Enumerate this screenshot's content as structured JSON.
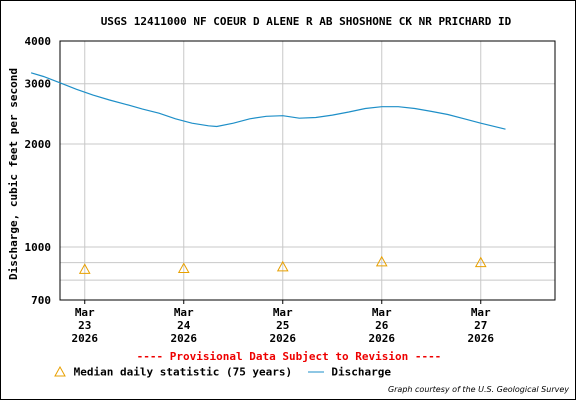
{
  "chart_data": {
    "type": "line",
    "title": "USGS 12411000 NF COEUR D ALENE R AB SHOSHONE CK NR PRICHARD ID",
    "ylabel": "Discharge, cubic feet per second",
    "xlabel": "",
    "y_scale": "log",
    "ylim": [
      700,
      4000
    ],
    "y_ticks": [
      "700",
      "1000",
      "2000",
      "3000",
      "4000"
    ],
    "y_gridlines": [
      800,
      900,
      1000,
      2000,
      3000,
      4000
    ],
    "grid": true,
    "x_ticks": [
      {
        "month": "Mar",
        "day": "23",
        "year": "2026"
      },
      {
        "month": "Mar",
        "day": "24",
        "year": "2026"
      },
      {
        "month": "Mar",
        "day": "25",
        "year": "2026"
      },
      {
        "month": "Mar",
        "day": "26",
        "year": "2026"
      },
      {
        "month": "Mar",
        "day": "27",
        "year": "2026"
      }
    ],
    "series": [
      {
        "name": "Discharge",
        "color": "#1e8fc8",
        "points": [
          [
            "2026-03-22 11:00",
            3230
          ],
          [
            "2026-03-22 14:00",
            3150
          ],
          [
            "2026-03-22 18:00",
            3020
          ],
          [
            "2026-03-22 22:00",
            2890
          ],
          [
            "2026-03-23 02:00",
            2780
          ],
          [
            "2026-03-23 06:00",
            2690
          ],
          [
            "2026-03-23 10:00",
            2610
          ],
          [
            "2026-03-23 14:00",
            2530
          ],
          [
            "2026-03-23 18:00",
            2460
          ],
          [
            "2026-03-23 22:00",
            2370
          ],
          [
            "2026-03-24 02:00",
            2300
          ],
          [
            "2026-03-24 06:00",
            2260
          ],
          [
            "2026-03-24 08:00",
            2250
          ],
          [
            "2026-03-24 12:00",
            2300
          ],
          [
            "2026-03-24 16:00",
            2370
          ],
          [
            "2026-03-24 20:00",
            2410
          ],
          [
            "2026-03-25 00:00",
            2420
          ],
          [
            "2026-03-25 04:00",
            2380
          ],
          [
            "2026-03-25 08:00",
            2390
          ],
          [
            "2026-03-25 12:00",
            2430
          ],
          [
            "2026-03-25 16:00",
            2480
          ],
          [
            "2026-03-25 20:00",
            2540
          ],
          [
            "2026-03-26 00:00",
            2570
          ],
          [
            "2026-03-26 04:00",
            2570
          ],
          [
            "2026-03-26 08:00",
            2540
          ],
          [
            "2026-03-26 12:00",
            2490
          ],
          [
            "2026-03-26 16:00",
            2440
          ],
          [
            "2026-03-26 20:00",
            2370
          ],
          [
            "2026-03-27 00:00",
            2300
          ],
          [
            "2026-03-27 04:00",
            2240
          ],
          [
            "2026-03-27 06:00",
            2210
          ]
        ]
      },
      {
        "name": "Median daily statistic (75 years)",
        "marker": "triangle",
        "color": "#e8a000",
        "points": [
          [
            "2026-03-23 00:00",
            860
          ],
          [
            "2026-03-24 00:00",
            865
          ],
          [
            "2026-03-25 00:00",
            875
          ],
          [
            "2026-03-26 00:00",
            905
          ],
          [
            "2026-03-27 00:00",
            900
          ]
        ]
      }
    ],
    "legend": [
      "Median daily statistic (75 years)",
      "Discharge"
    ],
    "legend_position": "bottom"
  },
  "provisional": "---- Provisional Data Subject to Revision ----",
  "credit": "Graph courtesy of the U.S. Geological Survey"
}
